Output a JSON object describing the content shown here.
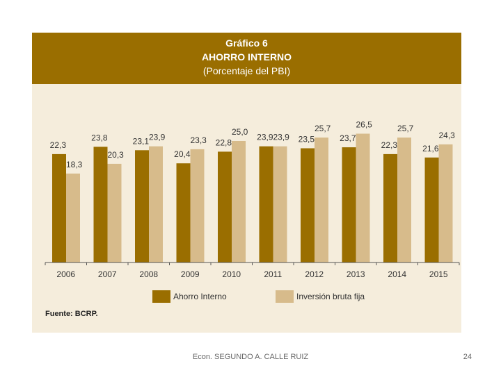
{
  "header": {
    "line1": "Gráfico 6",
    "line2": "AHORRO INTERNO",
    "line3": "(Porcentaje del PBI)"
  },
  "source": "Fuente: BCRP.",
  "footer": {
    "author": "Econ. SEGUNDO A. CALLE RUIZ",
    "page": "24"
  },
  "colors": {
    "ahorro": "#9a6e00",
    "inversion": "#d7bb8b",
    "header_bg": "#9a6e00",
    "panel_bg": "#f5eddc"
  },
  "chart_data": {
    "type": "bar",
    "title": "AHORRO INTERNO",
    "subtitle": "(Porcentaje del PBI)",
    "categories": [
      "2006",
      "2007",
      "2008",
      "2009",
      "2010",
      "2011",
      "2012",
      "2013",
      "2014",
      "2015"
    ],
    "series": [
      {
        "name": "Ahorro Interno",
        "values": [
          22.3,
          23.8,
          23.1,
          20.4,
          22.8,
          23.9,
          23.5,
          23.7,
          22.3,
          21.6
        ],
        "labels": [
          "22,3",
          "23,8",
          "23,1",
          "20,4",
          "22,8",
          "23,9",
          "23,5",
          "23,7",
          "22,3",
          "21,6"
        ]
      },
      {
        "name": "Inversión bruta fija",
        "values": [
          18.3,
          20.3,
          23.9,
          23.3,
          25.0,
          23.9,
          25.7,
          26.5,
          25.7,
          24.3
        ],
        "labels": [
          "18,3",
          "20,3",
          "23,9",
          "23,3",
          "25,0",
          "23,9",
          "25,7",
          "26,5",
          "25,7",
          "24,3"
        ]
      }
    ],
    "ylim": [
      0,
      33
    ],
    "grid": false,
    "legend": "bottom"
  }
}
